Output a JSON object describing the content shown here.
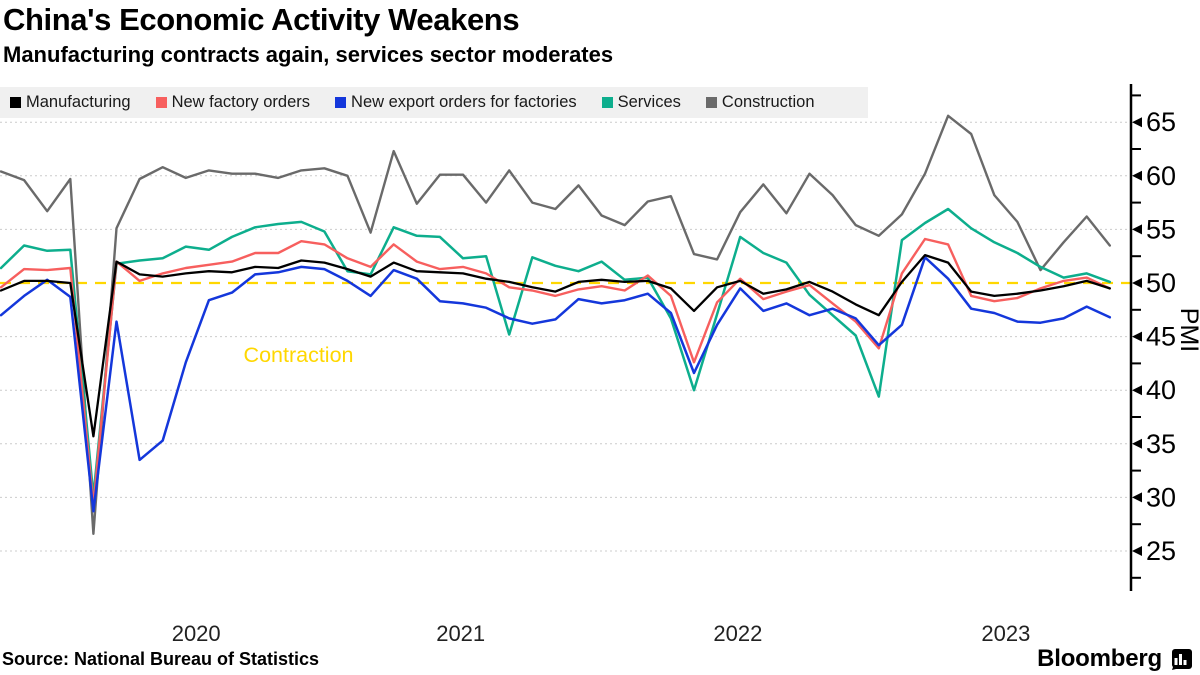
{
  "header": {
    "title": "China's Economic Activity Weakens",
    "subtitle": "Manufacturing contracts again, services sector moderates"
  },
  "legend": {
    "items": [
      {
        "label": "Manufacturing",
        "color": "#000000"
      },
      {
        "label": "New factory orders",
        "color": "#F75F5E"
      },
      {
        "label": "New export orders for factories",
        "color": "#1437DB"
      },
      {
        "label": "Services",
        "color": "#0DAE8D"
      },
      {
        "label": "Construction",
        "color": "#6A6A6A"
      }
    ]
  },
  "chart_data": {
    "type": "line",
    "title": "China's Economic Activity Weakens",
    "ylabel": "PMI",
    "ylim": [
      22.5,
      67.5
    ],
    "yticks": [
      25,
      30,
      35,
      40,
      45,
      50,
      55,
      60,
      65
    ],
    "grid": "horizontal-dashed",
    "legend_position": "top-left",
    "baseline": {
      "value": 50,
      "color": "#FFD700",
      "style": "dashed"
    },
    "annotations": [
      {
        "text": "Contraction",
        "color": "#FFD700",
        "x_index": 10.5,
        "y_value": 43.3
      }
    ],
    "xticks": [
      {
        "label": "2020",
        "x_index": 8.45
      },
      {
        "label": "2021",
        "x_index": 19.9
      },
      {
        "label": "2022",
        "x_index": 31.9
      },
      {
        "label": "2023",
        "x_index": 43.5
      }
    ],
    "x_months": [
      "Oct 2019",
      "Nov 2019",
      "Dec 2019",
      "Jan 2020",
      "Feb 2020",
      "Mar 2020",
      "Apr 2020",
      "May 2020",
      "Jun 2020",
      "Jul 2020",
      "Aug 2020",
      "Sep 2020",
      "Oct 2020",
      "Nov 2020",
      "Dec 2020",
      "Jan 2021",
      "Feb 2021",
      "Mar 2021",
      "Apr 2021",
      "May 2021",
      "Jun 2021",
      "Jul 2021",
      "Aug 2021",
      "Sep 2021",
      "Oct 2021",
      "Nov 2021",
      "Dec 2021",
      "Jan 2022",
      "Feb 2022",
      "Mar 2022",
      "Apr 2022",
      "May 2022",
      "Jun 2022",
      "Jul 2022",
      "Aug 2022",
      "Sep 2022",
      "Oct 2022",
      "Nov 2022",
      "Dec 2022",
      "Jan 2023",
      "Feb 2023",
      "Mar 2023",
      "Apr 2023",
      "May 2023",
      "Jun 2023",
      "Jul 2023",
      "Aug 2023",
      "Sep 2023",
      "Oct 2023"
    ],
    "series": [
      {
        "name": "Construction",
        "color": "#6A6A6A",
        "width": 2.4,
        "values": [
          60.4,
          59.6,
          56.7,
          59.7,
          26.6,
          55.1,
          59.7,
          60.8,
          59.8,
          60.5,
          60.2,
          60.2,
          59.8,
          60.5,
          60.7,
          60.0,
          54.7,
          62.3,
          57.4,
          60.1,
          60.1,
          57.5,
          60.5,
          57.5,
          56.9,
          59.1,
          56.3,
          55.4,
          57.6,
          58.1,
          52.7,
          52.2,
          56.6,
          59.2,
          56.5,
          60.2,
          58.2,
          55.4,
          54.4,
          56.4,
          60.2,
          65.6,
          63.9,
          58.2,
          55.7,
          51.2,
          53.8,
          56.2,
          53.5
        ]
      },
      {
        "name": "Services",
        "color": "#0DAE8D",
        "width": 2.5,
        "values": [
          51.4,
          53.5,
          53.0,
          53.1,
          30.1,
          51.8,
          52.1,
          52.3,
          53.4,
          53.1,
          54.3,
          55.2,
          55.5,
          55.7,
          54.8,
          51.1,
          50.8,
          55.2,
          54.4,
          54.3,
          52.3,
          52.5,
          45.2,
          52.4,
          51.6,
          51.1,
          52.0,
          50.3,
          50.5,
          46.7,
          40.0,
          47.1,
          54.3,
          52.8,
          51.9,
          48.9,
          47.0,
          45.1,
          39.4,
          54.0,
          55.6,
          56.9,
          55.1,
          53.8,
          52.8,
          51.5,
          50.5,
          50.9,
          50.1
        ]
      },
      {
        "name": "New factory orders",
        "color": "#F75F5E",
        "width": 2.4,
        "values": [
          49.6,
          51.3,
          51.2,
          51.4,
          29.3,
          52.0,
          50.2,
          50.9,
          51.4,
          51.7,
          52.0,
          52.8,
          52.8,
          53.9,
          53.6,
          52.3,
          51.5,
          53.6,
          52.0,
          51.3,
          51.5,
          50.9,
          49.6,
          49.3,
          48.8,
          49.4,
          49.7,
          49.3,
          50.7,
          48.8,
          42.6,
          48.2,
          50.4,
          48.5,
          49.2,
          49.8,
          48.1,
          46.4,
          43.9,
          50.9,
          54.1,
          53.6,
          48.8,
          48.3,
          48.6,
          49.5,
          50.2,
          50.5,
          49.5
        ]
      },
      {
        "name": "New export orders for factories",
        "color": "#1437DB",
        "width": 2.5,
        "values": [
          47.0,
          48.8,
          50.3,
          48.7,
          28.7,
          46.4,
          33.5,
          35.3,
          42.6,
          48.4,
          49.1,
          50.8,
          51.0,
          51.5,
          51.3,
          50.2,
          48.8,
          51.2,
          50.4,
          48.3,
          48.1,
          47.7,
          46.7,
          46.2,
          46.6,
          48.5,
          48.1,
          48.4,
          49.0,
          47.2,
          41.6,
          46.1,
          49.5,
          47.4,
          48.1,
          47.0,
          47.6,
          46.7,
          44.2,
          46.1,
          52.4,
          50.4,
          47.6,
          47.2,
          46.4,
          46.3,
          46.7,
          47.8,
          46.8
        ]
      },
      {
        "name": "Manufacturing",
        "color": "#000000",
        "width": 2.3,
        "values": [
          49.3,
          50.2,
          50.2,
          50.0,
          35.7,
          52.0,
          50.8,
          50.6,
          50.9,
          51.1,
          51.0,
          51.5,
          51.4,
          52.1,
          51.9,
          51.3,
          50.6,
          51.9,
          51.1,
          51.0,
          50.9,
          50.4,
          50.1,
          49.6,
          49.2,
          50.1,
          50.3,
          50.1,
          50.2,
          49.5,
          47.4,
          49.6,
          50.2,
          49.0,
          49.4,
          50.1,
          49.2,
          48.0,
          47.0,
          50.1,
          52.6,
          51.9,
          49.2,
          48.8,
          49.0,
          49.3,
          49.7,
          50.2,
          49.5
        ]
      }
    ]
  },
  "footer": {
    "source": "Source: National Bureau of Statistics",
    "brand": "Bloomberg"
  },
  "colors": {
    "baseline_gold": "#FFD700",
    "gridline": "#CCCCCC",
    "legend_bg": "#F0F0F0",
    "axis": "#000000"
  }
}
